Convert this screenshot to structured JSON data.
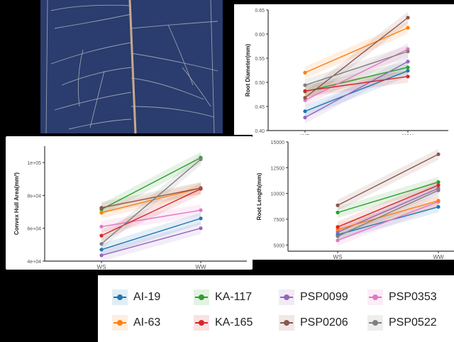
{
  "photo": {
    "label": "root-system-image"
  },
  "groups": [
    "WS",
    "WW"
  ],
  "legend": [
    {
      "name": "AI-19",
      "color": "#1f77b4"
    },
    {
      "name": "KA-117",
      "color": "#2ca02c"
    },
    {
      "name": "PSP0099",
      "color": "#9467bd"
    },
    {
      "name": "PSP0353",
      "color": "#e377c2"
    },
    {
      "name": "AI-63",
      "color": "#ff7f0e"
    },
    {
      "name": "KA-165",
      "color": "#d62728"
    },
    {
      "name": "PSP0206",
      "color": "#8c564b"
    },
    {
      "name": "PSP0522",
      "color": "#7f7f7f"
    }
  ],
  "chart_data": [
    {
      "id": "diam",
      "type": "line",
      "ylabel": "Root Diameter(mm)",
      "x": [
        "WS",
        "WW"
      ],
      "ylim": [
        0.4,
        0.65
      ],
      "yticks": [
        0.4,
        0.45,
        0.5,
        0.55,
        0.6,
        0.65
      ],
      "ytick_labels": [
        "0.40",
        "0.45",
        "0.50",
        "0.55",
        "0.60",
        "0.65"
      ],
      "series": [
        {
          "name": "AI-19",
          "values": [
            0.44,
            0.524
          ]
        },
        {
          "name": "KA-117",
          "values": [
            0.481,
            0.531
          ]
        },
        {
          "name": "PSP0099",
          "values": [
            0.427,
            0.543
          ]
        },
        {
          "name": "PSP0353",
          "values": [
            0.463,
            0.569
          ]
        },
        {
          "name": "AI-63",
          "values": [
            0.52,
            0.613
          ]
        },
        {
          "name": "KA-165",
          "values": [
            0.482,
            0.512
          ]
        },
        {
          "name": "PSP0206",
          "values": [
            0.468,
            0.634
          ]
        },
        {
          "name": "PSP0522",
          "values": [
            0.494,
            0.564
          ]
        }
      ]
    },
    {
      "id": "hull",
      "type": "line",
      "ylabel": "Convex Hull Area(mm²)",
      "x": [
        "WS",
        "WW"
      ],
      "ylim": [
        40000,
        110000
      ],
      "yticks": [
        40000,
        60000,
        80000,
        100000
      ],
      "ytick_labels": [
        "4e+04",
        "6e+04",
        "8e+04",
        "1e+05"
      ],
      "series": [
        {
          "name": "AI-19",
          "values": [
            47000,
            66000
          ]
        },
        {
          "name": "KA-117",
          "values": [
            71500,
            103000
          ]
        },
        {
          "name": "PSP0099",
          "values": [
            43500,
            60000
          ]
        },
        {
          "name": "PSP0353",
          "values": [
            61000,
            71000
          ]
        },
        {
          "name": "AI-63",
          "values": [
            69500,
            84500
          ]
        },
        {
          "name": "KA-165",
          "values": [
            55500,
            84000
          ]
        },
        {
          "name": "PSP0206",
          "values": [
            72500,
            84500
          ]
        },
        {
          "name": "PSP0522",
          "values": [
            50500,
            102000
          ]
        }
      ]
    },
    {
      "id": "len",
      "type": "line",
      "ylabel": "Root Length(mm)",
      "x": [
        "WS",
        "WW"
      ],
      "ylim": [
        4400,
        15000
      ],
      "yticks": [
        5000,
        7500,
        10000,
        12500,
        15000
      ],
      "ytick_labels": [
        "5000",
        "7500",
        "10000",
        "12500",
        "15000"
      ],
      "series": [
        {
          "name": "AI-19",
          "values": [
            6000,
            8700
          ]
        },
        {
          "name": "KA-117",
          "values": [
            8150,
            11100
          ]
        },
        {
          "name": "PSP0099",
          "values": [
            6250,
            10500
          ]
        },
        {
          "name": "PSP0353",
          "values": [
            5450,
            9200
          ]
        },
        {
          "name": "AI-63",
          "values": [
            6500,
            9300
          ]
        },
        {
          "name": "KA-165",
          "values": [
            6750,
            10800
          ]
        },
        {
          "name": "PSP0206",
          "values": [
            8850,
            13800
          ]
        },
        {
          "name": "PSP0522",
          "values": [
            5850,
            10300
          ]
        }
      ]
    }
  ]
}
